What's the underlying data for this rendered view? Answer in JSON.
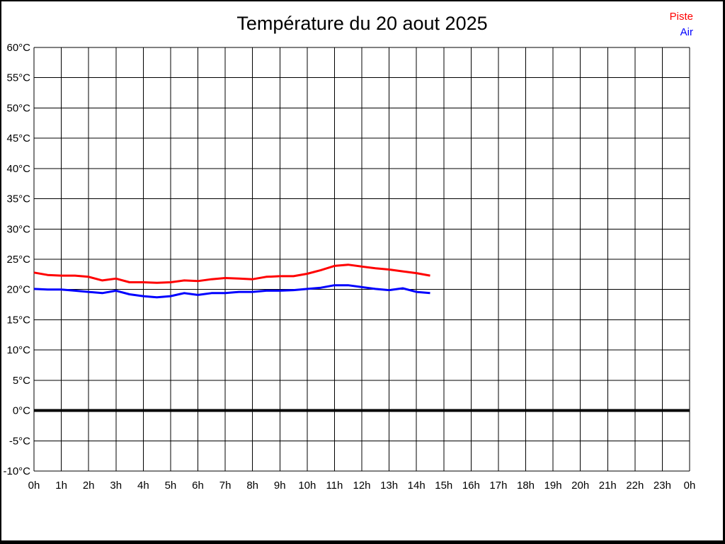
{
  "frame": {
    "background": "#ffffff",
    "border_color": "#000000"
  },
  "chart_data": {
    "type": "line",
    "title": "Température du 20 aout 2025",
    "xlabel": "",
    "ylabel": "",
    "xlim": [
      0,
      24
    ],
    "ylim": [
      -10,
      60
    ],
    "grid": true,
    "grid_color": "#000000",
    "legend_position": "top-right",
    "y_tick_step": 5,
    "x_tick_step": 1,
    "y_ticks": [
      "60°C",
      "55°C",
      "50°C",
      "45°C",
      "40°C",
      "35°C",
      "30°C",
      "25°C",
      "20°C",
      "15°C",
      "10°C",
      "5°C",
      "0°C",
      "-5°C",
      "-10°C"
    ],
    "x_ticks": [
      "0h",
      "1h",
      "2h",
      "3h",
      "4h",
      "5h",
      "6h",
      "7h",
      "8h",
      "9h",
      "10h",
      "11h",
      "12h",
      "13h",
      "14h",
      "15h",
      "16h",
      "17h",
      "18h",
      "19h",
      "20h",
      "21h",
      "22h",
      "23h",
      "0h"
    ],
    "zero_line": {
      "value": 0,
      "color": "#000000",
      "width": 4
    },
    "x": [
      0,
      0.5,
      1,
      1.5,
      2,
      2.5,
      3,
      3.5,
      4,
      4.5,
      5,
      5.5,
      6,
      6.5,
      7,
      7.5,
      8,
      8.5,
      9,
      9.5,
      10,
      10.5,
      11,
      11.5,
      12,
      12.5,
      13,
      13.5,
      14,
      14.5
    ],
    "series": [
      {
        "name": "Piste",
        "color": "#ff0000",
        "values": [
          22.8,
          22.4,
          22.3,
          22.3,
          22.1,
          21.5,
          21.8,
          21.2,
          21.2,
          21.1,
          21.2,
          21.5,
          21.4,
          21.7,
          21.9,
          21.8,
          21.7,
          22.1,
          22.2,
          22.2,
          22.6,
          23.2,
          23.9,
          24.1,
          23.8,
          23.5,
          23.3,
          23.0,
          22.7,
          22.3
        ]
      },
      {
        "name": "Air",
        "color": "#0000ff",
        "values": [
          20.1,
          20.0,
          20.0,
          19.8,
          19.6,
          19.4,
          19.8,
          19.2,
          18.9,
          18.7,
          18.9,
          19.4,
          19.1,
          19.4,
          19.4,
          19.6,
          19.6,
          19.8,
          19.8,
          19.9,
          20.1,
          20.3,
          20.7,
          20.7,
          20.4,
          20.1,
          19.9,
          20.2,
          19.6,
          19.4
        ]
      }
    ]
  }
}
